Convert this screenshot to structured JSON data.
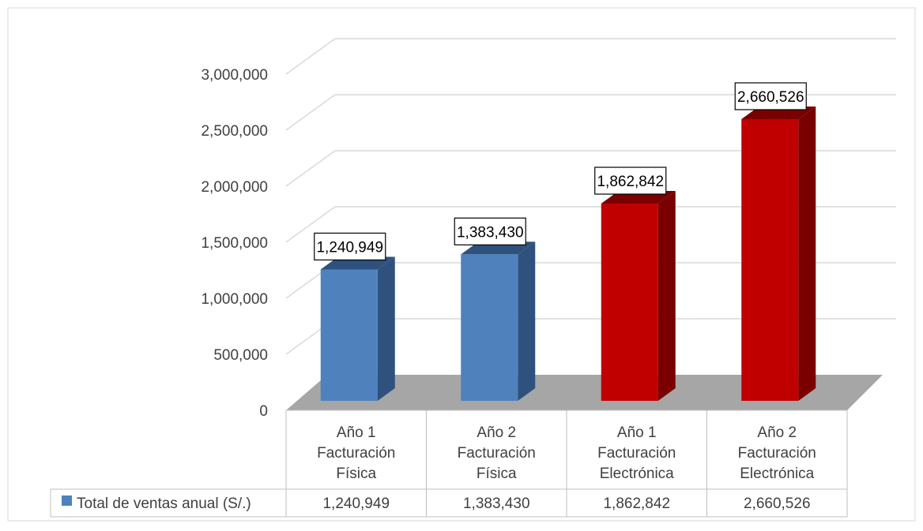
{
  "chart_data": {
    "type": "bar",
    "categories": [
      [
        "Año 1",
        "Facturación",
        "Física"
      ],
      [
        "Año 2",
        "Facturación",
        "Física"
      ],
      [
        "Año 1",
        "Facturación",
        "Electrónica"
      ],
      [
        "Año 2",
        "Facturación",
        "Electrónica"
      ]
    ],
    "series": [
      {
        "name": "Total de ventas anual (S/.)",
        "values": [
          1240949,
          1383430,
          1862842,
          2660526
        ],
        "value_labels": [
          "1,240,949",
          "1,383,430",
          "1,862,842",
          "2,660,526"
        ]
      }
    ],
    "y_ticks": [
      "0",
      "500,000",
      "1,000,000",
      "1,500,000",
      "2,000,000",
      "2,500,000",
      "3,000,000"
    ],
    "ylim": [
      0,
      3000000
    ],
    "grid": true,
    "legend": "data-table-row",
    "title": "",
    "xlabel": "",
    "ylabel": "",
    "colors": {
      "legend_key": "#4f81bd",
      "blue_front": "#4f81bd",
      "blue_side": "#2e527d",
      "red_front": "#c00000",
      "red_side": "#7a0000",
      "floor": "#a6a6a6",
      "grid": "#d9d9d9",
      "text": "#404040"
    }
  }
}
